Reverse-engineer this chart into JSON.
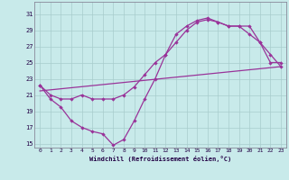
{
  "xlabel": "Windchill (Refroidissement éolien,°C)",
  "bg_color": "#c8eaea",
  "grid_color": "#a8cccc",
  "line_color": "#993399",
  "ylim": [
    14.5,
    32.5
  ],
  "xlim": [
    -0.5,
    23.5
  ],
  "yticks": [
    15,
    17,
    19,
    21,
    23,
    25,
    27,
    29,
    31
  ],
  "xticks": [
    0,
    1,
    2,
    3,
    4,
    5,
    6,
    7,
    8,
    9,
    10,
    11,
    12,
    13,
    14,
    15,
    16,
    17,
    18,
    19,
    20,
    21,
    22,
    23
  ],
  "line1_x": [
    0,
    1,
    2,
    3,
    4,
    5,
    6,
    7,
    8,
    9,
    10,
    11,
    12,
    13,
    14,
    15,
    16,
    17,
    18,
    19,
    20,
    21,
    22,
    23
  ],
  "line1_y": [
    22.2,
    20.5,
    19.5,
    17.8,
    17.0,
    16.5,
    16.2,
    14.8,
    15.5,
    17.8,
    20.5,
    23.0,
    26.0,
    28.5,
    29.5,
    30.2,
    30.5,
    30.0,
    29.5,
    29.5,
    28.5,
    27.5,
    25.0,
    25.0
  ],
  "line2_x": [
    0,
    1,
    2,
    3,
    4,
    5,
    6,
    7,
    8,
    9,
    10,
    11,
    12,
    13,
    14,
    15,
    16,
    17,
    18,
    19,
    20,
    21,
    22,
    23
  ],
  "line2_y": [
    22.2,
    21.0,
    20.5,
    20.5,
    21.0,
    20.5,
    20.5,
    20.5,
    21.0,
    22.0,
    23.5,
    25.0,
    26.0,
    27.5,
    29.0,
    30.0,
    30.3,
    30.0,
    29.5,
    29.5,
    29.5,
    27.5,
    26.0,
    24.5
  ],
  "line3_x": [
    0,
    23
  ],
  "line3_y": [
    21.5,
    24.5
  ]
}
